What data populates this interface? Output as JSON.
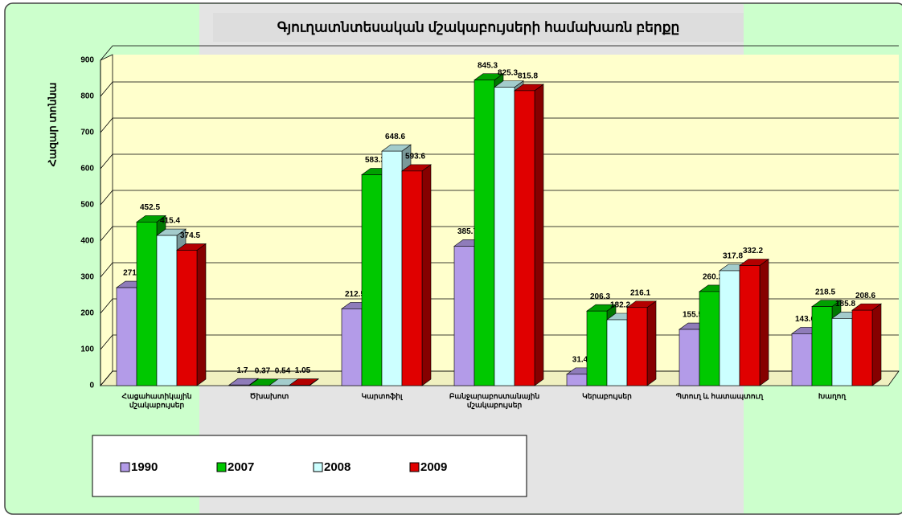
{
  "chart_data": {
    "type": "bar3d",
    "title": "Գյուղատնտեսական մշակաբույսերի համախառն բերքը",
    "y_label": "Հազար տոննա",
    "categories": [
      "Հացահատիկային մշակաբույսեր",
      "Ծխախոտ",
      "Կարտոֆիլ",
      "Բանջարաբոստանային մշակաբույսեր",
      "Կերաբույսեր",
      "Պտուղ և հատապտուղ",
      "Խաղող"
    ],
    "series": [
      {
        "name": "1990",
        "color": "#b39be8",
        "values": [
          271,
          1.7,
          212.5,
          385.7,
          31.4,
          155.5,
          143.6
        ]
      },
      {
        "name": "2007",
        "color": "#00c800",
        "values": [
          452.5,
          0.37,
          583.3,
          845.3,
          206.3,
          260.2,
          218.5
        ]
      },
      {
        "name": "2008",
        "color": "#ccffff",
        "values": [
          415.4,
          0.54,
          648.6,
          825.3,
          182.2,
          317.8,
          185.8
        ]
      },
      {
        "name": "2009",
        "color": "#e00000",
        "values": [
          374.5,
          1.05,
          593.6,
          815.8,
          216.1,
          332.2,
          208.6
        ]
      }
    ],
    "ylim": [
      0,
      900
    ],
    "yticks": [
      0,
      100,
      200,
      300,
      400,
      500,
      600,
      700,
      800,
      900
    ],
    "grid": true
  }
}
